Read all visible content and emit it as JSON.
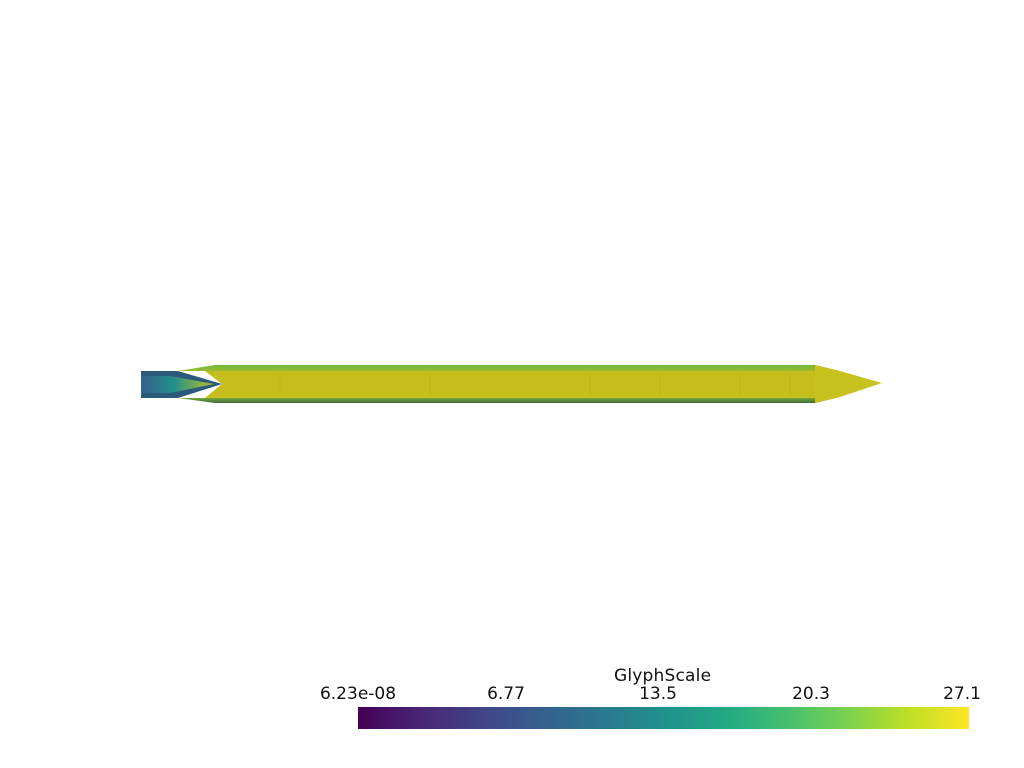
{
  "scalar_bar": {
    "title": "GlyphScale",
    "labels": [
      "6.23e-08",
      "6.77",
      "13.5",
      "20.3",
      "27.1"
    ],
    "range": [
      6.23e-08,
      27.1
    ],
    "colormap": "viridis",
    "colors": [
      "#440154",
      "#482475",
      "#414487",
      "#355f8d",
      "#2a788e",
      "#21918c",
      "#22a884",
      "#44bf70",
      "#7ad151",
      "#bddf26",
      "#fde725"
    ]
  },
  "scene": {
    "background": "#ffffff",
    "object": "elongated-glyph-mesh",
    "body_color": "#c9c21f",
    "edge_color": "#7ab63a"
  }
}
